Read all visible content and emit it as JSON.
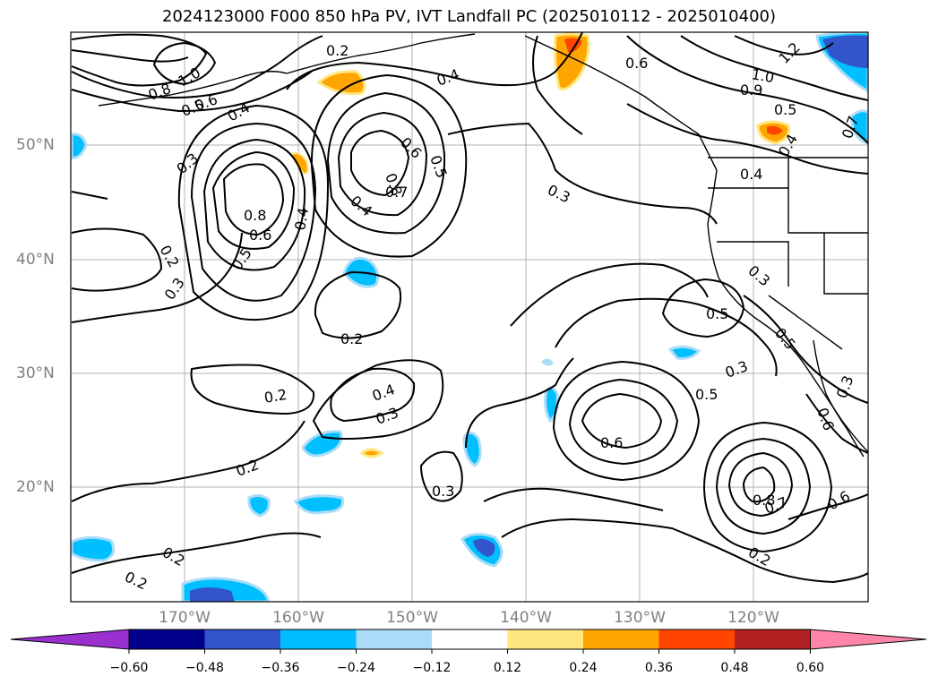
{
  "title": "2024123000 F000 850 hPa PV, IVT Landfall PC (2025010112 - 2025010400)",
  "lat_labels": [
    "50°N",
    "40°N",
    "30°N",
    "20°N"
  ],
  "lon_labels": [
    "170°W",
    "160°W",
    "150°W",
    "140°W",
    "130°W",
    "120°W"
  ],
  "colorbar": {
    "ticks": [
      "−0.60",
      "−0.48",
      "−0.36",
      "−0.24",
      "−0.12",
      "0.12",
      "0.24",
      "0.36",
      "0.48",
      "0.60"
    ],
    "colors": [
      "#9b30d0",
      "#00008b",
      "#3355cc",
      "#00bfff",
      "#aadcf8",
      "#ffffff",
      "#ffe680",
      "#ffa500",
      "#ff4500",
      "#b22222",
      "#ff85a8"
    ]
  },
  "contour_labels": [
    "1.0",
    "0.8",
    "0.5",
    "0.6",
    "0.4",
    "0.3",
    "0.2",
    "0.2",
    "0.3",
    "0.8",
    "0.6",
    "0.5",
    "0.4",
    "0.6",
    "0.8",
    "0.7",
    "0.5",
    "0.4",
    "0.4",
    "0.6",
    "0.3",
    "1.0",
    "0.9",
    "1.2",
    "0.5",
    "0.4",
    "0.7",
    "0.4",
    "0.2",
    "0.2",
    "0.4",
    "0.3",
    "0.2",
    "0.3",
    "0.2",
    "0.2",
    "0.3",
    "0.5",
    "0.5",
    "0.3",
    "0.5",
    "0.6",
    "0.3",
    "0.6",
    "0.8",
    "0.7",
    "0.6",
    "0.2"
  ]
}
